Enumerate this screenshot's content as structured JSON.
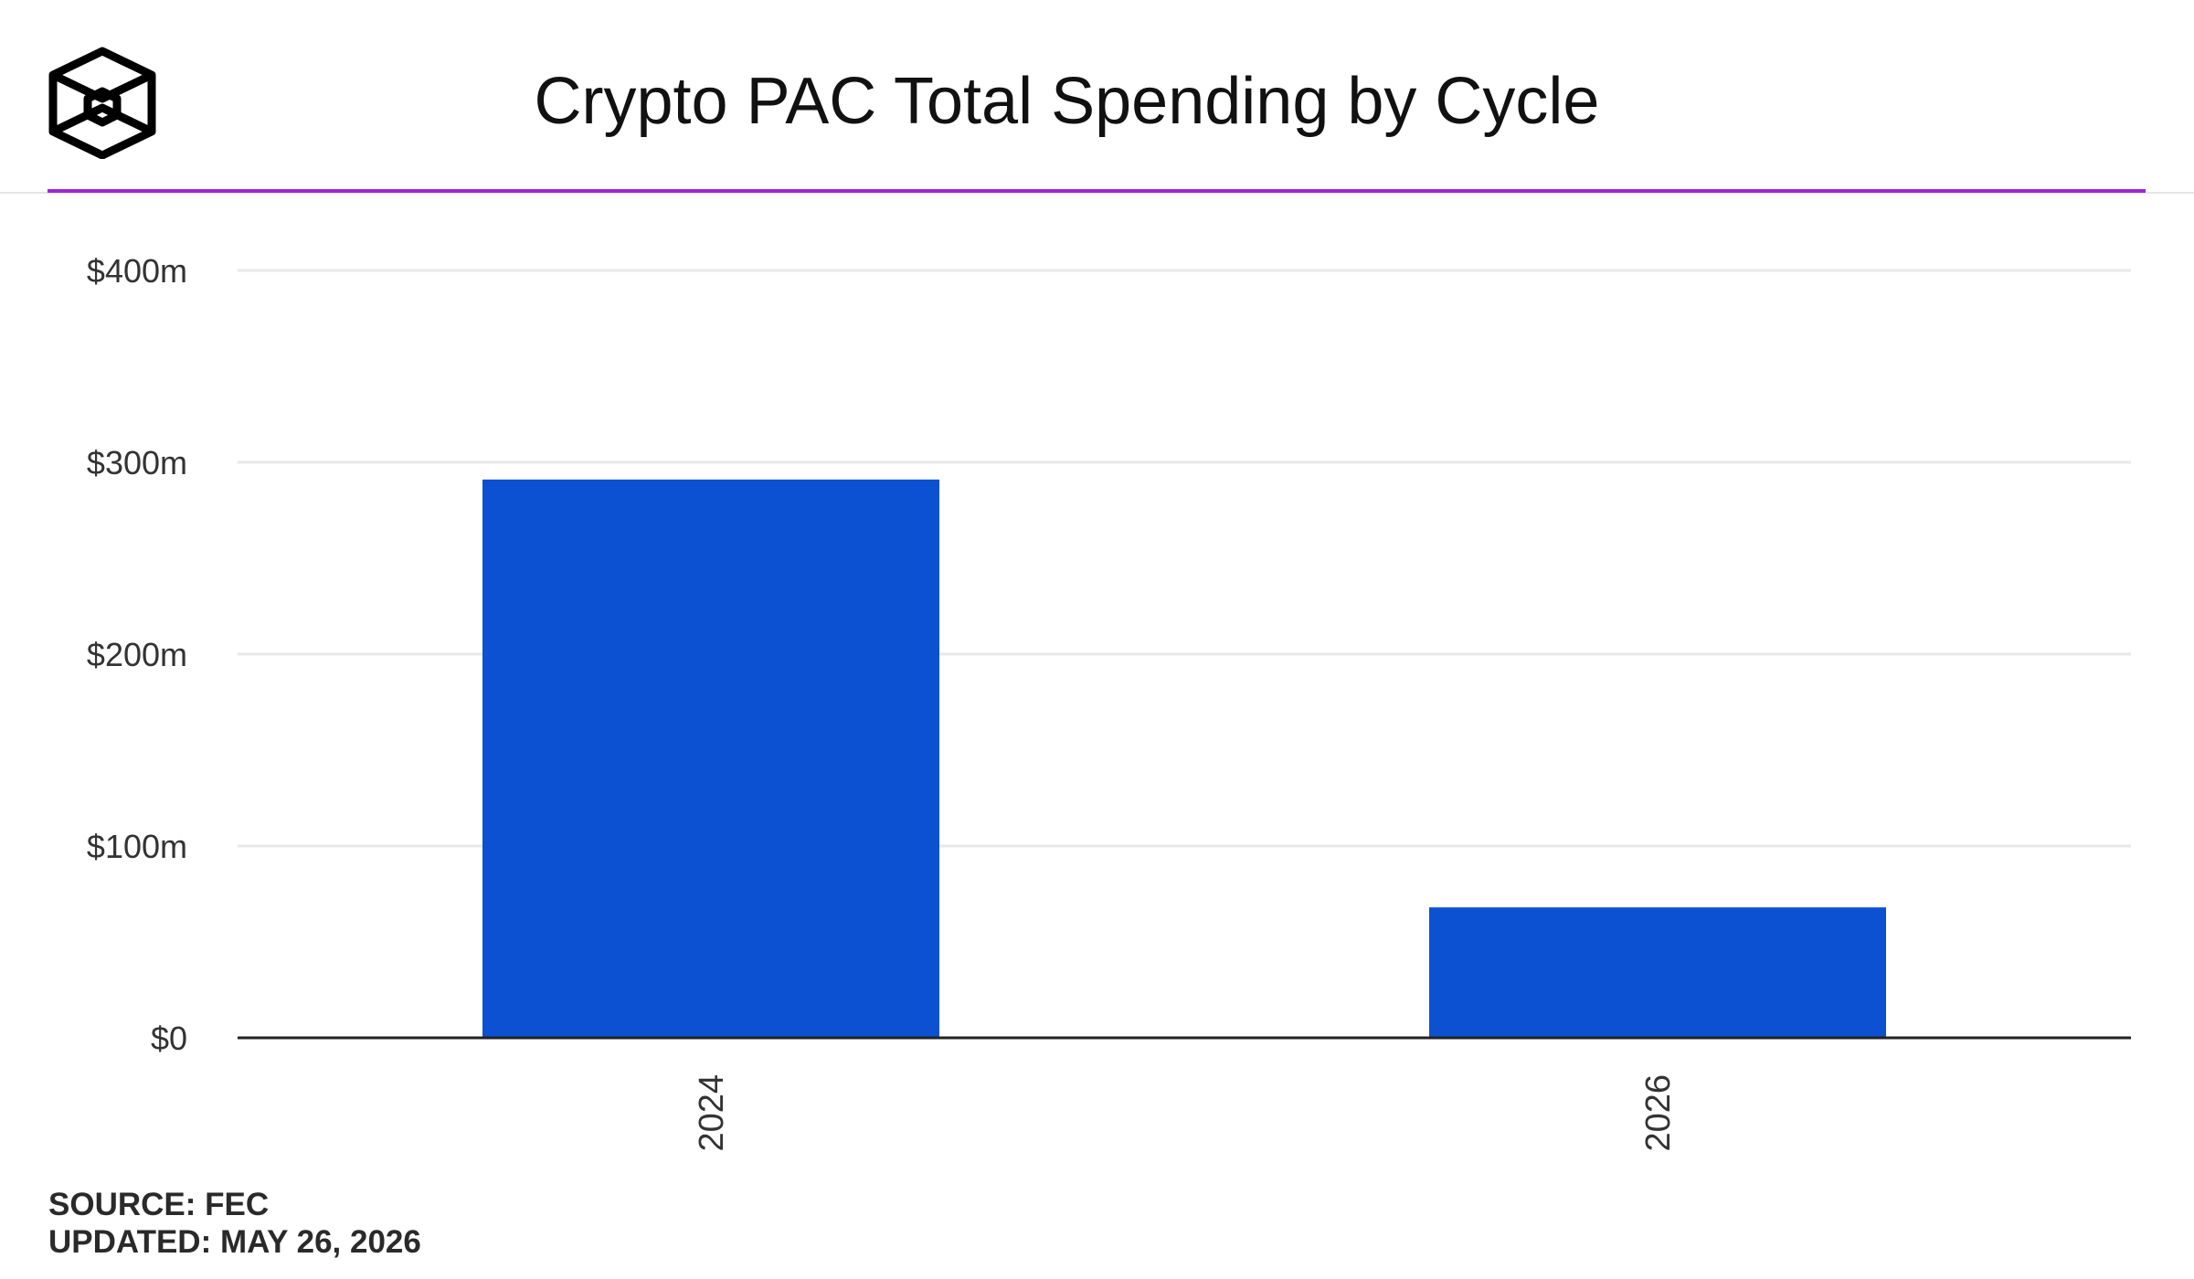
{
  "colors": {
    "accent": "#9c27d6",
    "bar": "#0c51d1",
    "grid": "#e8e8e8",
    "axis": "#222222",
    "text": "#333333"
  },
  "header": {
    "logo_icon": "cube-logo-icon",
    "title": "Crypto PAC Total Spending by Cycle"
  },
  "footer": {
    "source": "SOURCE: FEC",
    "updated": "UPDATED: MAY 26, 2026"
  },
  "chart_data": {
    "type": "bar",
    "title": "Crypto PAC Total Spending by Cycle",
    "categories": [
      "2024",
      "2026"
    ],
    "values": [
      291,
      68
    ],
    "unit": "$m",
    "ylim": [
      0,
      400
    ],
    "yticks": [
      0,
      100,
      200,
      300,
      400
    ],
    "ytick_labels": [
      "$0",
      "$100m",
      "$200m",
      "$300m",
      "$400m"
    ],
    "xlabel": "",
    "ylabel": "",
    "grid": true,
    "legend": "none"
  }
}
